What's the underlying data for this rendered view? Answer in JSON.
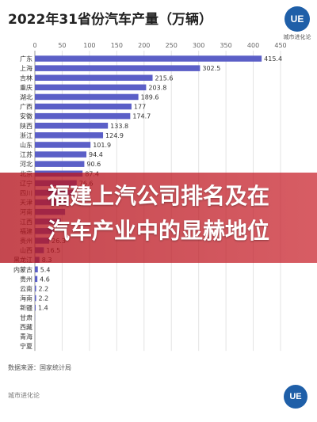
{
  "header": {
    "title": "2022年31省份汽车产量（万辆）"
  },
  "logo": {
    "mark": "UE",
    "text": "城市进化论"
  },
  "chart_data": {
    "type": "bar",
    "orientation": "horizontal",
    "xlim": [
      0,
      450
    ],
    "xticks": [
      0,
      50,
      100,
      150,
      200,
      250,
      300,
      350,
      400,
      450
    ],
    "grid": true,
    "bar_color": "#5b5fc7",
    "categories": [
      "广东",
      "上海",
      "吉林",
      "重庆",
      "湖北",
      "广西",
      "安徽",
      "陕西",
      "浙江",
      "山东",
      "江苏",
      "河北",
      "北京",
      "辽宁",
      "四川",
      "天津",
      "河南",
      "江西",
      "福建",
      "贵州",
      "山西",
      "黑龙江",
      "内蒙古",
      "贵州",
      "云南",
      "海南",
      "新疆",
      "甘肃",
      "西藏",
      "青海",
      "宁夏"
    ],
    "values": [
      415.4,
      302.5,
      215.6,
      203.8,
      189.6,
      177,
      174.7,
      133.8,
      124.9,
      101.9,
      94.4,
      90.6,
      87.4,
      76.6,
      70.3,
      63,
      55.3,
      47.7,
      34.5,
      26.3,
      16.5,
      8.3,
      5.4,
      4.6,
      2.2,
      2.2,
      1.4,
      0.3,
      0,
      0,
      0
    ],
    "value_labels": [
      "415.4",
      "302.5",
      "215.6",
      "203.8",
      "189.6",
      "177",
      "174.7",
      "133.8",
      "124.9",
      "101.9",
      "94.4",
      "90.6",
      "87.4",
      "76.6",
      "",
      "",
      "",
      "",
      "",
      "26.3",
      "16.5",
      "8.3",
      "5.4",
      "4.6",
      "2.2",
      "2.2",
      "1.4",
      "",
      "",
      "",
      ""
    ]
  },
  "source": "数据来源：国家统计局",
  "footer": "城市进化论",
  "overlay": {
    "line1": "福建上汽公司排名及在",
    "line2": "汽车产业中的显赫地位"
  }
}
